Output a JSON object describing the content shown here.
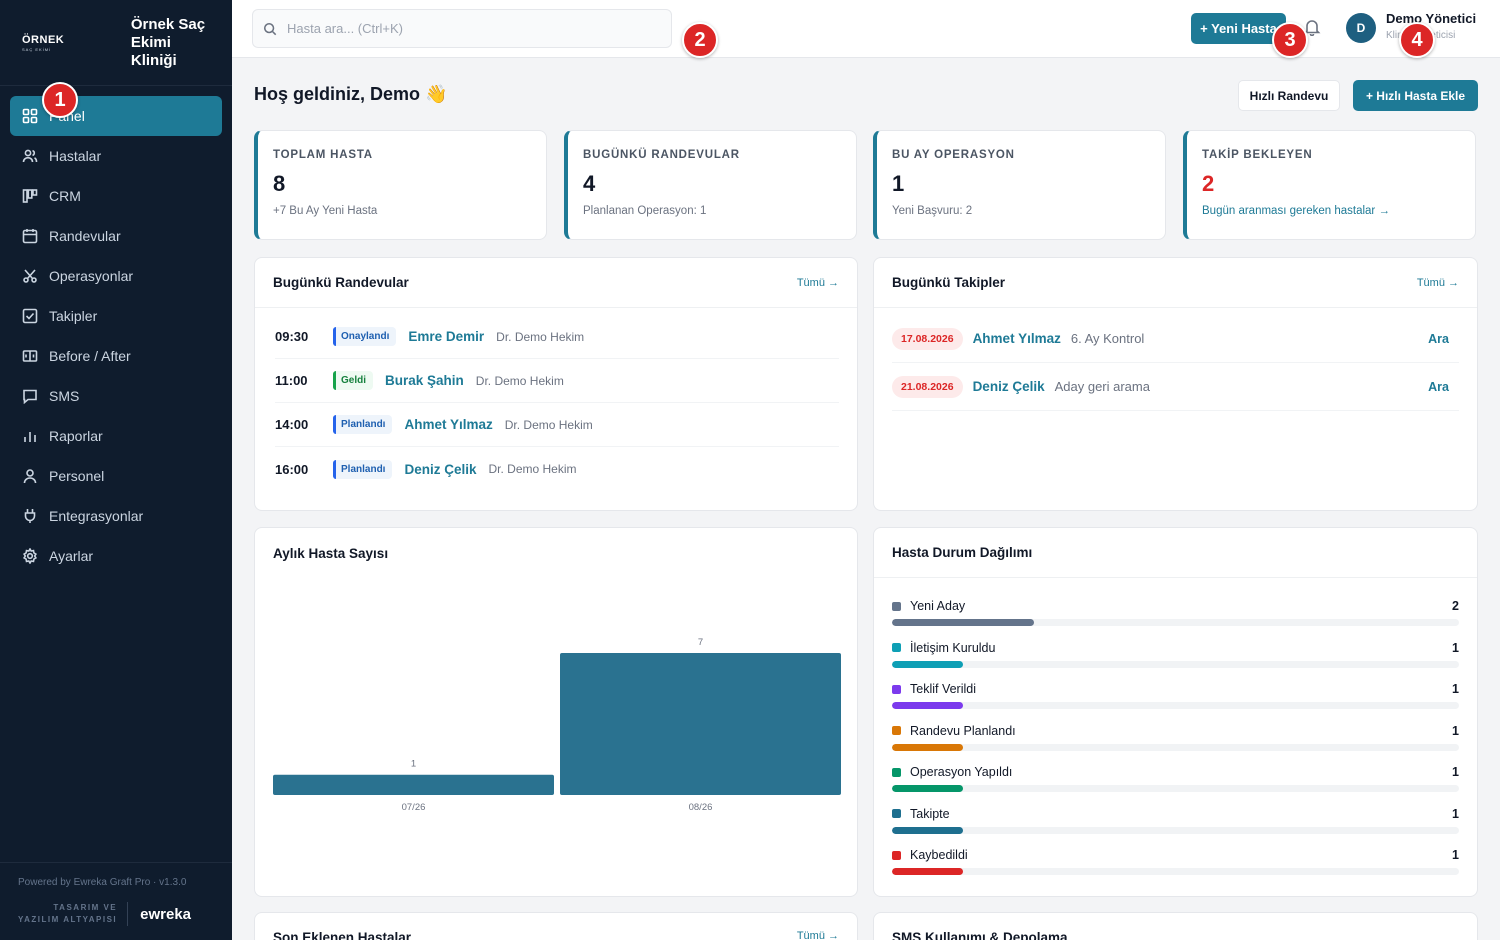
{
  "brand": {
    "logo_main": "ÖRNEK",
    "logo_sub": "SAÇ EKİMİ",
    "clinic_name": "Örnek Saç Ekimi Kliniği"
  },
  "sidebar": {
    "items": [
      {
        "label": "Panel",
        "icon": "dashboard-icon",
        "active": true
      },
      {
        "label": "Hastalar",
        "icon": "users-icon"
      },
      {
        "label": "CRM",
        "icon": "kanban-icon"
      },
      {
        "label": "Randevular",
        "icon": "calendar-icon"
      },
      {
        "label": "Operasyonlar",
        "icon": "scissors-icon"
      },
      {
        "label": "Takipler",
        "icon": "checklist-icon"
      },
      {
        "label": "Before / After",
        "icon": "compare-icon"
      },
      {
        "label": "SMS",
        "icon": "message-icon"
      },
      {
        "label": "Raporlar",
        "icon": "bar-chart-icon"
      },
      {
        "label": "Personel",
        "icon": "person-icon"
      },
      {
        "label": "Entegrasyonlar",
        "icon": "plug-icon"
      },
      {
        "label": "Ayarlar",
        "icon": "gear-icon"
      }
    ],
    "powered_by": "Powered by Ewreka Graft Pro · v1.3.0",
    "design_label_1": "TASARIM VE",
    "design_label_2": "YAZILIM ALTYAPISI",
    "design_brand": "ewreka"
  },
  "topbar": {
    "search_placeholder": "Hasta ara... (Ctrl+K)",
    "new_patient": "+ Yeni Hasta",
    "avatar_initial": "D",
    "user_name": "Demo Yönetici",
    "user_role": "Klinik Yöneticisi"
  },
  "markers": [
    "1",
    "2",
    "3",
    "4"
  ],
  "main": {
    "welcome": "Hoş geldiniz, Demo 👋",
    "quick_appointment": "Hızlı Randevu",
    "quick_add_patient": "+ Hızlı Hasta Ekle"
  },
  "stats": [
    {
      "label": "TOPLAM HASTA",
      "value": "8",
      "sub": "+7 Bu Ay Yeni Hasta"
    },
    {
      "label": "BUGÜNKÜ RANDEVULAR",
      "value": "4",
      "sub": "Planlanan Operasyon: 1"
    },
    {
      "label": "BU AY OPERASYON",
      "value": "1",
      "sub": "Yeni Başvuru: 2"
    },
    {
      "label": "TAKİP BEKLEYEN",
      "value": "2",
      "sub": "Bugün aranması gereken hastalar →"
    }
  ],
  "appointments": {
    "title": "Bugünkü Randevular",
    "link": "Tümü →",
    "rows": [
      {
        "time": "09:30",
        "status": "Onaylandı",
        "name": "Emre Demir",
        "doctor": "Dr. Demo Hekim"
      },
      {
        "time": "11:00",
        "status": "Geldi",
        "name": "Burak Şahin",
        "doctor": "Dr. Demo Hekim"
      },
      {
        "time": "14:00",
        "status": "Planlandı",
        "name": "Ahmet Yılmaz",
        "doctor": "Dr. Demo Hekim"
      },
      {
        "time": "16:00",
        "status": "Planlandı",
        "name": "Deniz Çelik",
        "doctor": "Dr. Demo Hekim"
      }
    ]
  },
  "followups": {
    "title": "Bugünkü Takipler",
    "link": "Tümü →",
    "rows": [
      {
        "date": "17.08.2026",
        "name": "Ahmet Yılmaz",
        "note": "6. Ay Kontrol",
        "action": "Ara"
      },
      {
        "date": "21.08.2026",
        "name": "Deniz Çelik",
        "note": "Aday geri arama",
        "action": "Ara"
      }
    ]
  },
  "monthly": {
    "title": "Aylık Hasta Sayısı"
  },
  "chart_data": {
    "type": "bar",
    "categories": [
      "07/26",
      "08/26"
    ],
    "values": [
      1,
      7
    ],
    "title": "Aylık Hasta Sayısı",
    "xlabel": "",
    "ylabel": "",
    "ylim": [
      0,
      7
    ],
    "grid": false,
    "color": "#2a7290"
  },
  "status_distribution": {
    "title": "Hasta Durum Dağılımı",
    "max": 8,
    "rows": [
      {
        "label": "Yeni Aday",
        "count": "2",
        "value": 2,
        "color": "#64748b"
      },
      {
        "label": "İletişim Kuruldu",
        "count": "1",
        "value": 1,
        "color": "#0e9fb5"
      },
      {
        "label": "Teklif Verildi",
        "count": "1",
        "value": 1,
        "color": "#7c3aed"
      },
      {
        "label": "Randevu Planlandı",
        "count": "1",
        "value": 1,
        "color": "#d97706"
      },
      {
        "label": "Operasyon Yapıldı",
        "count": "1",
        "value": 1,
        "color": "#059669"
      },
      {
        "label": "Takipte",
        "count": "1",
        "value": 1,
        "color": "#1e6f8f"
      },
      {
        "label": "Kaybedildi",
        "count": "1",
        "value": 1,
        "color": "#dc2626"
      }
    ]
  },
  "recent_patients": {
    "title": "Son Eklenen Hastalar",
    "link": "Tümü →"
  },
  "sms_usage": {
    "title": "SMS Kullanımı & Depolama"
  }
}
